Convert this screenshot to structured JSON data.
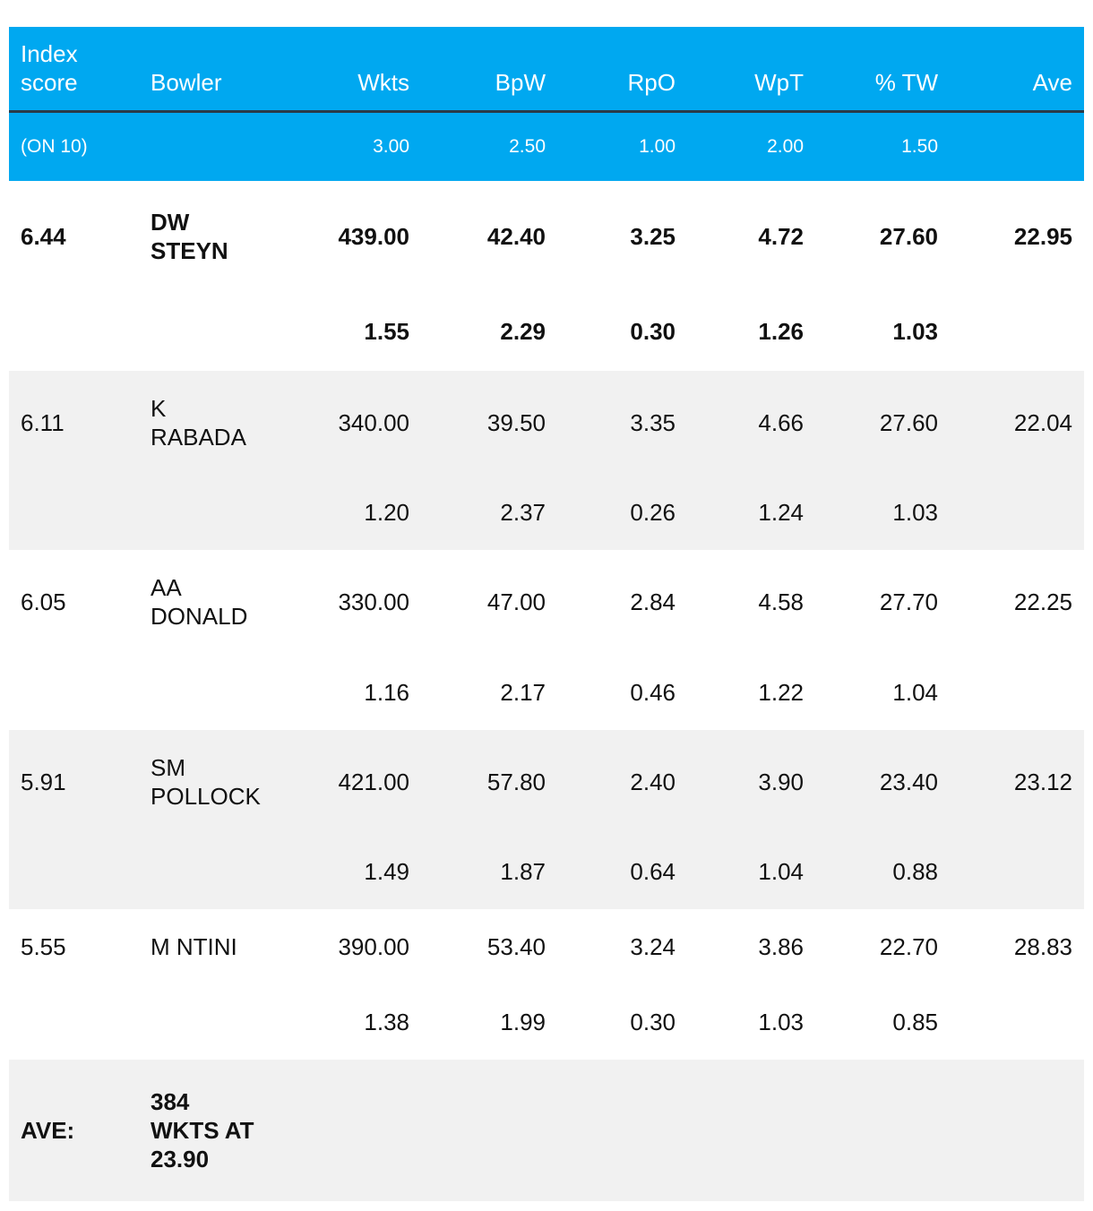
{
  "header": {
    "columns": [
      "Index\nscore",
      "Bowler",
      "Wkts",
      "BpW",
      "RpO",
      "WpT",
      "% TW",
      "Ave"
    ],
    "weights_label": "(ON 10)",
    "weights": [
      "",
      "3.00",
      "2.50",
      "1.00",
      "2.00",
      "1.50",
      ""
    ]
  },
  "rows": [
    {
      "index": "6.44",
      "bowler": "DW\nSTEYN",
      "wkts": "439.00",
      "bpw": "42.40",
      "rpo": "3.25",
      "wpt": "4.72",
      "tw": "27.60",
      "ave": "22.95",
      "s_wkts": "1.55",
      "s_bpw": "2.29",
      "s_rpo": "0.30",
      "s_wpt": "1.26",
      "s_tw": "1.03"
    },
    {
      "index": "6.11",
      "bowler": "K\nRABADA",
      "wkts": "340.00",
      "bpw": "39.50",
      "rpo": "3.35",
      "wpt": "4.66",
      "tw": "27.60",
      "ave": "22.04",
      "s_wkts": "1.20",
      "s_bpw": "2.37",
      "s_rpo": "0.26",
      "s_wpt": "1.24",
      "s_tw": "1.03"
    },
    {
      "index": "6.05",
      "bowler": "AA\nDONALD",
      "wkts": "330.00",
      "bpw": "47.00",
      "rpo": "2.84",
      "wpt": "4.58",
      "tw": "27.70",
      "ave": "22.25",
      "s_wkts": "1.16",
      "s_bpw": "2.17",
      "s_rpo": "0.46",
      "s_wpt": "1.22",
      "s_tw": "1.04"
    },
    {
      "index": "5.91",
      "bowler": "SM\nPOLLOCK",
      "wkts": "421.00",
      "bpw": "57.80",
      "rpo": "2.40",
      "wpt": "3.90",
      "tw": "23.40",
      "ave": "23.12",
      "s_wkts": "1.49",
      "s_bpw": "1.87",
      "s_rpo": "0.64",
      "s_wpt": "1.04",
      "s_tw": "0.88"
    },
    {
      "index": "5.55",
      "bowler": "M NTINI",
      "wkts": "390.00",
      "bpw": "53.40",
      "rpo": "3.24",
      "wpt": "3.86",
      "tw": "22.70",
      "ave": "28.83",
      "s_wkts": "1.38",
      "s_bpw": "1.99",
      "s_rpo": "0.30",
      "s_wpt": "1.03",
      "s_tw": "0.85"
    }
  ],
  "footer": {
    "label": "AVE:",
    "text": "384\nWKTS AT\n23.90"
  },
  "colors": {
    "header_bg": "#00a8f0",
    "stripe": "#f1f1f1",
    "divider": "#2a3a48"
  }
}
